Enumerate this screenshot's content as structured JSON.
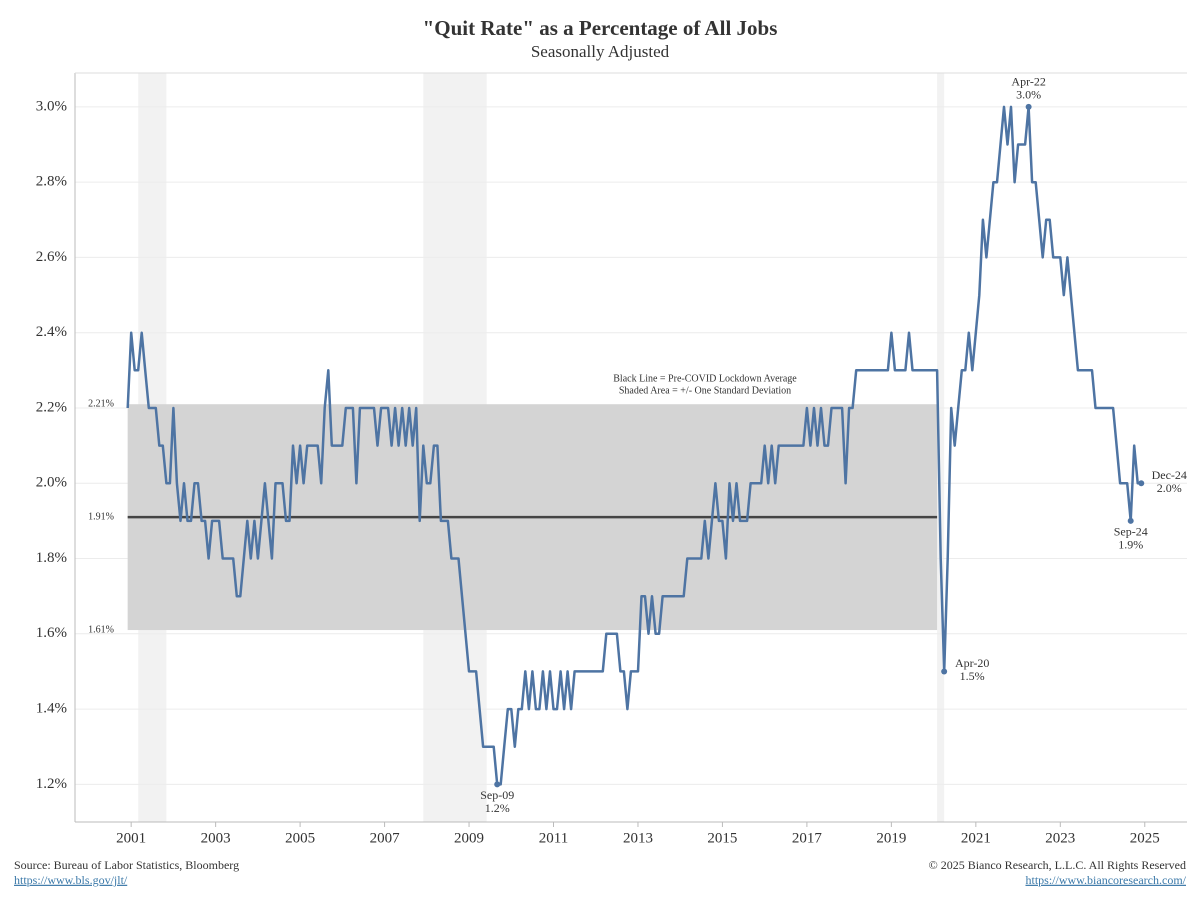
{
  "chart_data": {
    "type": "line",
    "title": "\"Quit Rate\" as a Percentage of All Jobs",
    "subtitle": "Seasonally Adjusted",
    "color": "#4e74a3",
    "x": [
      2000.917,
      2001,
      2001.083,
      2001.167,
      2001.25,
      2001.333,
      2001.417,
      2001.5,
      2001.583,
      2001.667,
      2001.75,
      2001.833,
      2001.917,
      2002,
      2002.083,
      2002.167,
      2002.25,
      2002.333,
      2002.417,
      2002.5,
      2002.583,
      2002.667,
      2002.75,
      2002.833,
      2002.917,
      2003,
      2003.083,
      2003.167,
      2003.25,
      2003.333,
      2003.417,
      2003.5,
      2003.583,
      2003.667,
      2003.75,
      2003.833,
      2003.917,
      2004,
      2004.083,
      2004.167,
      2004.25,
      2004.333,
      2004.417,
      2004.5,
      2004.583,
      2004.667,
      2004.75,
      2004.833,
      2004.917,
      2005,
      2005.083,
      2005.167,
      2005.25,
      2005.333,
      2005.417,
      2005.5,
      2005.583,
      2005.667,
      2005.75,
      2005.833,
      2005.917,
      2006,
      2006.083,
      2006.167,
      2006.25,
      2006.333,
      2006.417,
      2006.5,
      2006.583,
      2006.667,
      2006.75,
      2006.833,
      2006.917,
      2007,
      2007.083,
      2007.167,
      2007.25,
      2007.333,
      2007.417,
      2007.5,
      2007.583,
      2007.667,
      2007.75,
      2007.833,
      2007.917,
      2008,
      2008.083,
      2008.167,
      2008.25,
      2008.333,
      2008.417,
      2008.5,
      2008.583,
      2008.667,
      2008.75,
      2008.833,
      2008.917,
      2009,
      2009.083,
      2009.167,
      2009.25,
      2009.333,
      2009.417,
      2009.5,
      2009.583,
      2009.667,
      2009.75,
      2009.833,
      2009.917,
      2010,
      2010.083,
      2010.167,
      2010.25,
      2010.333,
      2010.417,
      2010.5,
      2010.583,
      2010.667,
      2010.75,
      2010.833,
      2010.917,
      2011,
      2011.083,
      2011.167,
      2011.25,
      2011.333,
      2011.417,
      2011.5,
      2011.583,
      2011.667,
      2011.75,
      2011.833,
      2011.917,
      2012,
      2012.083,
      2012.167,
      2012.25,
      2012.333,
      2012.417,
      2012.5,
      2012.583,
      2012.667,
      2012.75,
      2012.833,
      2012.917,
      2013,
      2013.083,
      2013.167,
      2013.25,
      2013.333,
      2013.417,
      2013.5,
      2013.583,
      2013.667,
      2013.75,
      2013.833,
      2013.917,
      2014,
      2014.083,
      2014.167,
      2014.25,
      2014.333,
      2014.417,
      2014.5,
      2014.583,
      2014.667,
      2014.75,
      2014.833,
      2014.917,
      2015,
      2015.083,
      2015.167,
      2015.25,
      2015.333,
      2015.417,
      2015.5,
      2015.583,
      2015.667,
      2015.75,
      2015.833,
      2015.917,
      2016,
      2016.083,
      2016.167,
      2016.25,
      2016.333,
      2016.417,
      2016.5,
      2016.583,
      2016.667,
      2016.75,
      2016.833,
      2016.917,
      2017,
      2017.083,
      2017.167,
      2017.25,
      2017.333,
      2017.417,
      2017.5,
      2017.583,
      2017.667,
      2017.75,
      2017.833,
      2017.917,
      2018,
      2018.083,
      2018.167,
      2018.25,
      2018.333,
      2018.417,
      2018.5,
      2018.583,
      2018.667,
      2018.75,
      2018.833,
      2018.917,
      2019,
      2019.083,
      2019.167,
      2019.25,
      2019.333,
      2019.417,
      2019.5,
      2019.583,
      2019.667,
      2019.75,
      2019.833,
      2019.917,
      2020,
      2020.083,
      2020.167,
      2020.25,
      2020.333,
      2020.417,
      2020.5,
      2020.583,
      2020.667,
      2020.75,
      2020.833,
      2020.917,
      2021,
      2021.083,
      2021.167,
      2021.25,
      2021.333,
      2021.417,
      2021.5,
      2021.583,
      2021.667,
      2021.75,
      2021.833,
      2021.917,
      2022,
      2022.083,
      2022.167,
      2022.25,
      2022.333,
      2022.417,
      2022.5,
      2022.583,
      2022.667,
      2022.75,
      2022.833,
      2022.917,
      2023,
      2023.083,
      2023.167,
      2023.25,
      2023.333,
      2023.417,
      2023.5,
      2023.583,
      2023.667,
      2023.75,
      2023.833,
      2023.917,
      2024,
      2024.083,
      2024.167,
      2024.25,
      2024.333,
      2024.417,
      2024.5,
      2024.583,
      2024.667,
      2024.75,
      2024.833,
      2024.917
    ],
    "values": [
      2.2,
      2.4,
      2.3,
      2.3,
      2.4,
      2.3,
      2.2,
      2.2,
      2.2,
      2.1,
      2.1,
      2.0,
      2.0,
      2.2,
      2.0,
      1.9,
      2.0,
      1.9,
      1.9,
      2.0,
      2.0,
      1.9,
      1.9,
      1.8,
      1.9,
      1.9,
      1.9,
      1.8,
      1.8,
      1.8,
      1.8,
      1.7,
      1.7,
      1.8,
      1.9,
      1.8,
      1.9,
      1.8,
      1.9,
      2.0,
      1.9,
      1.8,
      2.0,
      2.0,
      2.0,
      1.9,
      1.9,
      2.1,
      2.0,
      2.1,
      2.0,
      2.1,
      2.1,
      2.1,
      2.1,
      2.0,
      2.2,
      2.3,
      2.1,
      2.1,
      2.1,
      2.1,
      2.2,
      2.2,
      2.2,
      2.0,
      2.2,
      2.2,
      2.2,
      2.2,
      2.2,
      2.1,
      2.2,
      2.2,
      2.2,
      2.1,
      2.2,
      2.1,
      2.2,
      2.1,
      2.2,
      2.1,
      2.2,
      1.9,
      2.1,
      2.0,
      2.0,
      2.1,
      2.1,
      1.9,
      1.9,
      1.9,
      1.8,
      1.8,
      1.8,
      1.7,
      1.6,
      1.5,
      1.5,
      1.5,
      1.4,
      1.3,
      1.3,
      1.3,
      1.3,
      1.2,
      1.2,
      1.3,
      1.4,
      1.4,
      1.3,
      1.4,
      1.4,
      1.5,
      1.4,
      1.5,
      1.4,
      1.4,
      1.5,
      1.4,
      1.5,
      1.4,
      1.4,
      1.5,
      1.4,
      1.5,
      1.4,
      1.5,
      1.5,
      1.5,
      1.5,
      1.5,
      1.5,
      1.5,
      1.5,
      1.5,
      1.6,
      1.6,
      1.6,
      1.6,
      1.5,
      1.5,
      1.4,
      1.5,
      1.5,
      1.5,
      1.7,
      1.7,
      1.6,
      1.7,
      1.6,
      1.6,
      1.7,
      1.7,
      1.7,
      1.7,
      1.7,
      1.7,
      1.7,
      1.8,
      1.8,
      1.8,
      1.8,
      1.8,
      1.9,
      1.8,
      1.9,
      2.0,
      1.9,
      1.9,
      1.8,
      2.0,
      1.9,
      2.0,
      1.9,
      1.9,
      1.9,
      2.0,
      2.0,
      2.0,
      2.0,
      2.1,
      2.0,
      2.1,
      2.0,
      2.1,
      2.1,
      2.1,
      2.1,
      2.1,
      2.1,
      2.1,
      2.1,
      2.2,
      2.1,
      2.2,
      2.1,
      2.2,
      2.1,
      2.1,
      2.2,
      2.2,
      2.2,
      2.2,
      2.0,
      2.2,
      2.2,
      2.3,
      2.3,
      2.3,
      2.3,
      2.3,
      2.3,
      2.3,
      2.3,
      2.3,
      2.3,
      2.4,
      2.3,
      2.3,
      2.3,
      2.3,
      2.4,
      2.3,
      2.3,
      2.3,
      2.3,
      2.3,
      2.3,
      2.3,
      2.3,
      1.8,
      1.5,
      1.8,
      2.2,
      2.1,
      2.2,
      2.3,
      2.3,
      2.4,
      2.3,
      2.4,
      2.5,
      2.7,
      2.6,
      2.7,
      2.8,
      2.8,
      2.9,
      3.0,
      2.9,
      3.0,
      2.8,
      2.9,
      2.9,
      2.9,
      3.0,
      2.8,
      2.8,
      2.7,
      2.6,
      2.7,
      2.7,
      2.6,
      2.6,
      2.6,
      2.5,
      2.6,
      2.5,
      2.4,
      2.3,
      2.3,
      2.3,
      2.3,
      2.3,
      2.2,
      2.2,
      2.2,
      2.2,
      2.2,
      2.2,
      2.1,
      2.0,
      2.0,
      2.0,
      1.9,
      2.1,
      2.0,
      2.0
    ],
    "xlim": [
      1999.67,
      2026.0
    ],
    "xticks": [
      2001,
      2003,
      2005,
      2007,
      2009,
      2011,
      2013,
      2015,
      2017,
      2019,
      2021,
      2023,
      2025
    ],
    "ylim": [
      1.1,
      3.09
    ],
    "yticks": [
      {
        "value": 1.2,
        "label": "1.2%"
      },
      {
        "value": 1.4,
        "label": "1.4%"
      },
      {
        "value": 1.6,
        "label": "1.6%"
      },
      {
        "value": 1.8,
        "label": "1.8%"
      },
      {
        "value": 2.0,
        "label": "2.0%"
      },
      {
        "value": 2.2,
        "label": "2.2%"
      },
      {
        "value": 2.4,
        "label": "2.4%"
      },
      {
        "value": 2.6,
        "label": "2.6%"
      },
      {
        "value": 2.8,
        "label": "2.8%"
      },
      {
        "value": 3.0,
        "label": "3.0%"
      }
    ],
    "grid": true,
    "recessions": [
      [
        2001.167,
        2001.833
      ],
      [
        2007.917,
        2009.417
      ],
      [
        2020.083,
        2020.25
      ]
    ],
    "band": {
      "x": [
        2000.917,
        2020.083
      ],
      "upper": {
        "value": 2.21,
        "label": "2.21%"
      },
      "average": {
        "value": 1.91,
        "label": "1.91%"
      },
      "lower": {
        "value": 1.61,
        "label": "1.61%"
      },
      "note": [
        "Black Line = Pre-COVID Lockdown Average",
        "Shaded Area = +/- One Standard Deviation"
      ]
    },
    "annotations": [
      {
        "label": "Sep-09",
        "value_label": "1.2%",
        "x": 2009.667,
        "y": 1.2,
        "position": "below"
      },
      {
        "label": "Apr-20",
        "value_label": "1.5%",
        "x": 2020.25,
        "y": 1.5,
        "position": "right"
      },
      {
        "label": "Apr-22",
        "value_label": "3.0%",
        "x": 2022.25,
        "y": 3.0,
        "position": "above"
      },
      {
        "label": "Sep-24",
        "value_label": "1.9%",
        "x": 2024.667,
        "y": 1.9,
        "position": "below"
      },
      {
        "label": "Dec-24",
        "value_label": "2.0%",
        "x": 2024.917,
        "y": 2.0,
        "position": "right"
      }
    ],
    "footer": {
      "source": "Source: Bureau of Labor Statistics, Bloomberg",
      "source_url": "https://www.bls.gov/jlt/",
      "copyright": "© 2025 Bianco Research, L.L.C. All Rights Reserved",
      "site_url": "https://www.biancoresearch.com/"
    }
  }
}
